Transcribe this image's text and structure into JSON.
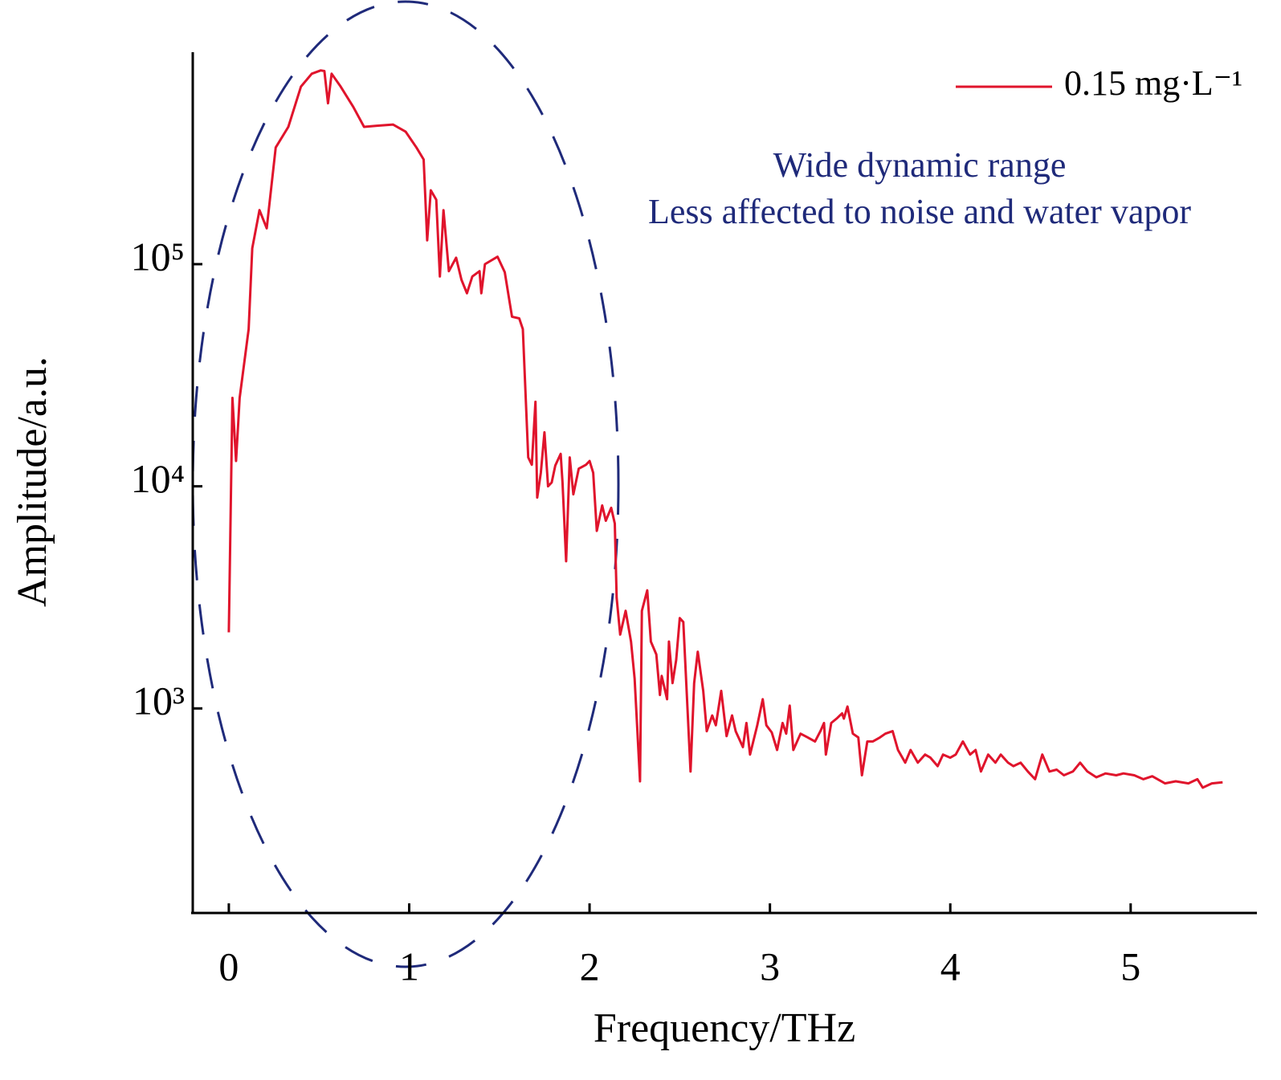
{
  "chart_data": {
    "type": "line",
    "xlabel": "Frequency/THz",
    "ylabel": "Amplitude/a.u.",
    "annotations": [
      "Wide dynamic range",
      "Less affected to noise and water vapor"
    ],
    "xlim": [
      -0.2,
      5.7
    ],
    "xticks": [
      0,
      1,
      2,
      3,
      4,
      5
    ],
    "ylim": [
      120,
      900000
    ],
    "ylog": true,
    "grid": false,
    "legend": "upper right",
    "yticks": [
      {
        "value": 1000,
        "label": "10³"
      },
      {
        "value": 10000,
        "label": "10⁴"
      },
      {
        "value": 100000,
        "label": "10⁵"
      }
    ],
    "x": [
      0,
      0.02,
      0.04,
      0.06,
      0.11,
      0.13,
      0.17,
      0.21,
      0.26,
      0.33,
      0.4,
      0.46,
      0.51,
      0.53,
      0.55,
      0.57,
      0.62,
      0.69,
      0.75,
      0.82,
      0.91,
      0.98,
      1.04,
      1.08,
      1.1,
      1.12,
      1.15,
      1.17,
      1.19,
      1.22,
      1.26,
      1.29,
      1.32,
      1.35,
      1.39,
      1.4,
      1.42,
      1.49,
      1.53,
      1.57,
      1.61,
      1.63,
      1.66,
      1.68,
      1.7,
      1.71,
      1.73,
      1.75,
      1.77,
      1.79,
      1.81,
      1.84,
      1.85,
      1.87,
      1.89,
      1.91,
      1.94,
      1.98,
      2.0,
      2.02,
      2.04,
      2.07,
      2.09,
      2.12,
      2.14,
      2.15,
      2.17,
      2.2,
      2.23,
      2.25,
      2.28,
      2.29,
      2.32,
      2.34,
      2.37,
      2.39,
      2.4,
      2.43,
      2.44,
      2.46,
      2.48,
      2.5,
      2.52,
      2.56,
      2.58,
      2.6,
      2.63,
      2.65,
      2.68,
      2.7,
      2.73,
      2.76,
      2.79,
      2.81,
      2.85,
      2.87,
      2.89,
      2.93,
      2.96,
      2.98,
      3.01,
      3.04,
      3.07,
      3.09,
      3.11,
      3.13,
      3.17,
      3.21,
      3.25,
      3.28,
      3.3,
      3.31,
      3.34,
      3.37,
      3.4,
      3.41,
      3.43,
      3.46,
      3.49,
      3.51,
      3.54,
      3.57,
      3.61,
      3.64,
      3.68,
      3.71,
      3.75,
      3.78,
      3.82,
      3.86,
      3.89,
      3.93,
      3.96,
      4.0,
      4.03,
      4.07,
      4.11,
      4.14,
      4.17,
      4.21,
      4.25,
      4.28,
      4.32,
      4.35,
      4.39,
      4.43,
      4.47,
      4.51,
      4.55,
      4.59,
      4.63,
      4.68,
      4.72,
      4.76,
      4.81,
      4.86,
      4.92,
      4.96,
      5.02,
      5.07,
      5.12,
      5.19,
      5.25,
      5.32,
      5.37,
      5.4,
      5.45,
      5.51
    ],
    "series": [
      {
        "name": "0.15 mg·L⁻¹",
        "color": "#e0142c",
        "values": [
          2200,
          25000,
          13000,
          25000,
          51000,
          118000,
          175000,
          145000,
          335000,
          415000,
          630000,
          720000,
          745000,
          740000,
          530000,
          720000,
          630000,
          510000,
          415000,
          420000,
          425000,
          395000,
          335000,
          296000,
          128000,
          215000,
          195000,
          88000,
          175000,
          93000,
          107000,
          85000,
          74000,
          88000,
          93000,
          74000,
          100000,
          108000,
          92000,
          58000,
          57000,
          51000,
          13500,
          12500,
          24000,
          8900,
          11500,
          17500,
          10000,
          10400,
          12400,
          14000,
          10400,
          4600,
          13500,
          9200,
          12000,
          12500,
          13000,
          11500,
          6300,
          8200,
          7000,
          8000,
          6800,
          3150,
          2150,
          2750,
          2000,
          1360,
          470,
          2750,
          3400,
          2000,
          1750,
          1150,
          1400,
          1100,
          2000,
          1300,
          1650,
          2550,
          2450,
          520,
          1300,
          1800,
          1200,
          790,
          930,
          840,
          1200,
          750,
          930,
          790,
          670,
          860,
          620,
          840,
          1100,
          840,
          780,
          650,
          860,
          770,
          1030,
          650,
          770,
          740,
          710,
          790,
          860,
          620,
          860,
          900,
          950,
          900,
          1020,
          770,
          740,
          500,
          710,
          710,
          740,
          770,
          790,
          650,
          570,
          650,
          570,
          620,
          600,
          550,
          620,
          600,
          620,
          710,
          620,
          650,
          520,
          620,
          570,
          620,
          570,
          550,
          570,
          520,
          480,
          620,
          520,
          530,
          500,
          520,
          570,
          520,
          490,
          510,
          500,
          510,
          500,
          480,
          495,
          460,
          470,
          460,
          480,
          440,
          460,
          465
        ]
      }
    ]
  }
}
